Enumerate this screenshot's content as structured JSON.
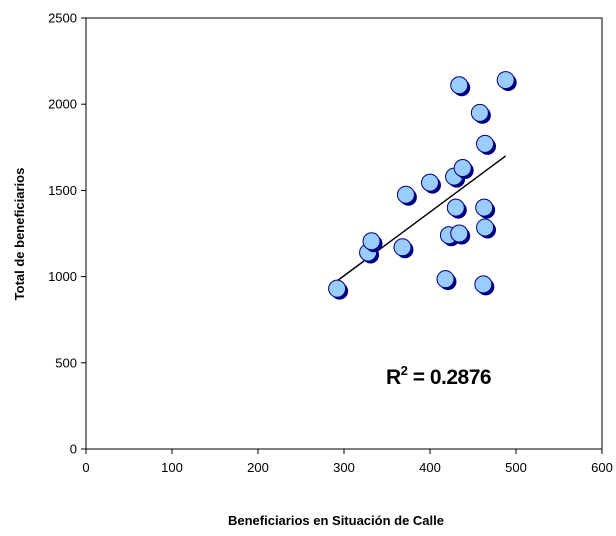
{
  "chart_data": {
    "type": "scatter",
    "title": "",
    "xlabel": "Beneficiarios en Situación de Calle",
    "ylabel": "Total de beneficiarios",
    "xlim": [
      0,
      600
    ],
    "ylim": [
      0,
      2500
    ],
    "xticks": [
      "0",
      "100",
      "200",
      "300",
      "400",
      "500",
      "600"
    ],
    "yticks": [
      "0",
      "500",
      "1000",
      "1500",
      "2000",
      "2500"
    ],
    "grid": false,
    "legend": "none",
    "marker_color": "#99ccff",
    "marker_shadow_color": "#000080",
    "points": [
      {
        "x": 292,
        "y": 930
      },
      {
        "x": 328,
        "y": 1140
      },
      {
        "x": 332,
        "y": 1205
      },
      {
        "x": 368,
        "y": 1170
      },
      {
        "x": 372,
        "y": 1475
      },
      {
        "x": 400,
        "y": 1545
      },
      {
        "x": 418,
        "y": 985
      },
      {
        "x": 422,
        "y": 1240
      },
      {
        "x": 428,
        "y": 1580
      },
      {
        "x": 430,
        "y": 1400
      },
      {
        "x": 434,
        "y": 1250
      },
      {
        "x": 434,
        "y": 2110
      },
      {
        "x": 438,
        "y": 1630
      },
      {
        "x": 458,
        "y": 1950
      },
      {
        "x": 462,
        "y": 955
      },
      {
        "x": 463,
        "y": 1400
      },
      {
        "x": 464,
        "y": 1285
      },
      {
        "x": 464,
        "y": 1770
      },
      {
        "x": 488,
        "y": 2140
      }
    ],
    "trendline": {
      "x": [
        292,
        488
      ],
      "y": [
        975,
        1700
      ]
    },
    "annotation": {
      "r2_label": "R",
      "r2_sup": "2",
      "r2_value": " = 0.2876"
    }
  }
}
